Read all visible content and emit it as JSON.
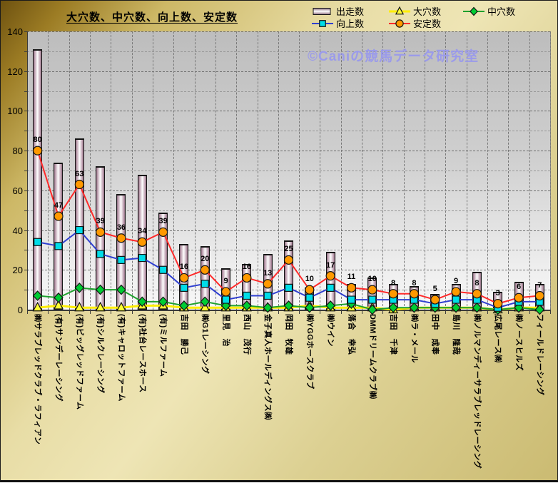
{
  "title": "大穴数、中穴数、向上数、安定数",
  "watermark": "©Caniの競馬データ研究室",
  "legend_order": [
    "出走数",
    "大穴数",
    "中穴数",
    "向上数",
    "安定数"
  ],
  "colors": {
    "background_dark_gold": "#6e5210",
    "background_light_gold": "#eee5b5",
    "plot_gray_top": "#bdbdbd",
    "plot_gray_bottom": "#f8f8f8",
    "bar_edge": "#8a687c",
    "bar_center": "#ffffff",
    "ooana_line": "#ffee00",
    "ooana_marker": "#ffff33",
    "chuuana_line": "#1fa12e",
    "chuuana_marker": "#00cc33",
    "koujou_line": "#2f3fd0",
    "koujou_marker": "#00dde8",
    "antei_line": "#ff2a2a",
    "antei_marker": "#ff9900",
    "watermark_text": "#9b9bea"
  },
  "y_axis": {
    "min": 0,
    "max": 140,
    "major_step": 20,
    "minor_step": 10,
    "tick_labels": [
      "0",
      "20",
      "40",
      "60",
      "80",
      "100",
      "120",
      "140"
    ]
  },
  "chart_data": {
    "type": "bar",
    "subtype": "combo-bar-line",
    "title": "大穴数、中穴数、向上数、安定数",
    "ylim": [
      0,
      140
    ],
    "grid": true,
    "legend_position": "top-right",
    "categories": [
      "㈱サラブレッドクラブ・ラフィアン",
      "(有)サンデーレーシング",
      "(有)ビッグレッドファーム",
      "(有)シルクレーシング",
      "(有)キャロットファーム",
      "(有)社台レースホース",
      "(有)ミルファーム",
      "吉田　勝己",
      "㈱G1レーシング",
      "里見　治",
      "西山　茂行",
      "金子真人ホールディングス㈱",
      "岡田　牧雄",
      "㈱YGGホースクラブ",
      "㈱ウイン",
      "落合　幸弘",
      "DMMドリームクラブ㈱",
      "吉田　千津",
      "㈱ラ・メール",
      "田中　成奉",
      "島川　隆哉",
      "㈱ノルマンディーサラブレッドレーシング",
      "広尾レース㈱",
      "㈱ノースヒルズ",
      "フィールドレーシング"
    ],
    "series": [
      {
        "name": "出走数",
        "type": "bar",
        "values": [
          131,
          74,
          86,
          72,
          58,
          68,
          49,
          33,
          32,
          21,
          23,
          28,
          35,
          11,
          29,
          13,
          16,
          13,
          12,
          8,
          13,
          19,
          9,
          14,
          13
        ]
      },
      {
        "name": "大穴数",
        "type": "line",
        "marker": "triangle",
        "line_color": "#ffee00",
        "marker_color": "#ffff33",
        "line_width": 3,
        "values": [
          1,
          2,
          1,
          1,
          1,
          2,
          2,
          1,
          1,
          1,
          1,
          1,
          1,
          2,
          1,
          1,
          1,
          0,
          1,
          1,
          1,
          1,
          0,
          1,
          1
        ]
      },
      {
        "name": "中穴数",
        "type": "line",
        "marker": "diamond",
        "line_color": "#1fa12e",
        "marker_color": "#00cc33",
        "line_width": 2,
        "values": [
          7,
          6,
          11,
          10,
          10,
          4,
          4,
          2,
          4,
          2,
          2,
          1,
          2,
          1,
          2,
          3,
          0,
          1,
          1,
          1,
          1,
          1,
          0,
          1,
          0
        ]
      },
      {
        "name": "向上数",
        "type": "line",
        "marker": "square",
        "line_color": "#2f3fd0",
        "marker_color": "#00dde8",
        "line_width": 2,
        "values": [
          34,
          32,
          40,
          28,
          25,
          26,
          20,
          11,
          13,
          5,
          7,
          7,
          11,
          6,
          11,
          5,
          5,
          5,
          5,
          3,
          5,
          5,
          1,
          4,
          4
        ]
      },
      {
        "name": "安定数",
        "type": "line",
        "marker": "circle",
        "line_color": "#ff2a2a",
        "marker_color": "#ff9900",
        "line_width": 2,
        "show_labels": true,
        "values": [
          80,
          47,
          63,
          39,
          36,
          34,
          39,
          16,
          20,
          9,
          16,
          13,
          25,
          10,
          17,
          11,
          10,
          8,
          8,
          5,
          9,
          8,
          3,
          6,
          7
        ]
      }
    ]
  }
}
